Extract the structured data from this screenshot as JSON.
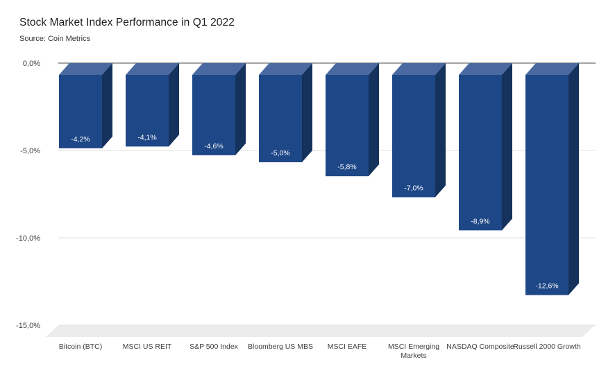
{
  "chart_data": {
    "type": "bar",
    "bar_style": "3d-column",
    "orientation": "vertical-negative",
    "title": "Stock Market Index Performance in Q1 2022",
    "source": "Source: Coin Metrics",
    "xlabel": "",
    "ylabel": "",
    "categories": [
      "Bitcoin (BTC)",
      "MSCI US REIT",
      "S&P 500 Index",
      "Bloomberg US MBS",
      "MSCI EAFE",
      "MSCI Emerging\nMarkets",
      "NASDAQ Composite",
      "Russell 2000 Growth"
    ],
    "values": [
      -4.2,
      -4.1,
      -4.6,
      -5.0,
      -5.8,
      -7.0,
      -8.9,
      -12.6
    ],
    "value_labels": [
      "-4,2%",
      "-4,1%",
      "-4,6%",
      "-5,0%",
      "-5,8%",
      "-7,0%",
      "-8,9%",
      "-12,6%"
    ],
    "value_suffix": "%",
    "decimal_separator": ",",
    "y_ticks": [
      {
        "value": 0,
        "label": "0,0%"
      },
      {
        "value": -5,
        "label": "-5,0%"
      },
      {
        "value": -10,
        "label": "-10,0%"
      },
      {
        "value": -15,
        "label": "-15,0%"
      }
    ],
    "ylim": [
      -15,
      0
    ],
    "grid": true,
    "legend": false,
    "colors": {
      "bar_front": "#1e4787",
      "bar_top": "#4a69a0",
      "bar_side": "#14325c",
      "zero_line": "#a3a3a3",
      "gridline": "#dfdfdf",
      "floor": "#ececec",
      "axis_text": "#404040",
      "value_text": "#ffffff",
      "title_text": "#1e1e1e",
      "source_text": "#333333"
    }
  }
}
